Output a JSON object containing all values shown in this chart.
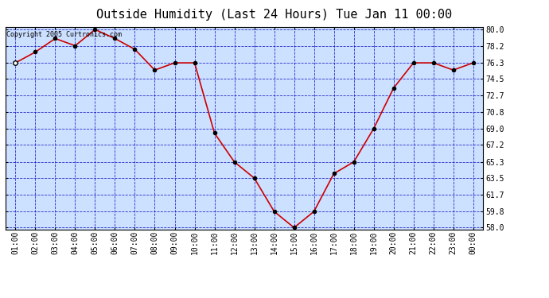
{
  "title": "Outside Humidity (Last 24 Hours) Tue Jan 11 00:00",
  "copyright": "Copyright 2005 Curtronics.com",
  "x_labels": [
    "01:00",
    "02:00",
    "03:00",
    "04:00",
    "05:00",
    "06:00",
    "07:00",
    "08:00",
    "09:00",
    "10:00",
    "11:00",
    "12:00",
    "13:00",
    "14:00",
    "15:00",
    "16:00",
    "17:00",
    "18:00",
    "19:00",
    "20:00",
    "21:00",
    "22:00",
    "23:00",
    "00:00"
  ],
  "y_values": [
    76.3,
    77.5,
    79.0,
    78.2,
    80.0,
    79.0,
    77.8,
    75.5,
    76.3,
    76.3,
    68.5,
    65.3,
    63.5,
    59.8,
    58.0,
    59.8,
    64.0,
    65.3,
    69.0,
    73.5,
    76.3,
    76.3,
    75.5,
    76.3
  ],
  "y_ticks": [
    58.0,
    59.8,
    61.7,
    63.5,
    65.3,
    67.2,
    69.0,
    70.8,
    72.7,
    74.5,
    76.3,
    78.2,
    80.0
  ],
  "ylim": [
    57.8,
    80.3
  ],
  "line_color": "#cc0000",
  "marker_color": "#000000",
  "bg_color": "#ffffff",
  "plot_bg_color": "#cce0ff",
  "grid_color": "#0000bb",
  "title_fontsize": 11,
  "copyright_fontsize": 6,
  "tick_fontsize": 7
}
